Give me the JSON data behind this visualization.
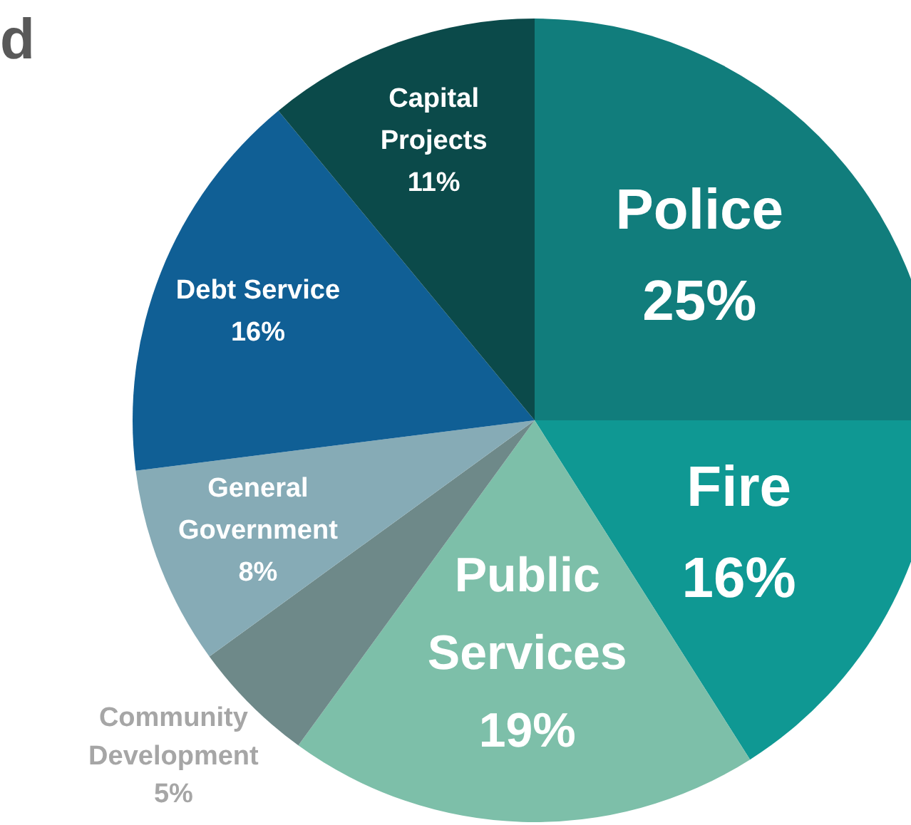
{
  "chart_data": {
    "type": "pie",
    "title": "d",
    "categories": [
      "Police",
      "Fire",
      "Public Services",
      "Community Development",
      "General Government",
      "Debt Service",
      "Capital Projects"
    ],
    "values": [
      25,
      16,
      19,
      5,
      8,
      16,
      11
    ],
    "colors": [
      "#117d7c",
      "#0f9893",
      "#7dbfa9",
      "#6e8989",
      "#86abb6",
      "#105f95",
      "#0b4a4a"
    ],
    "value_labels": [
      "25%",
      "16%",
      "19%",
      "5%",
      "8%",
      "16%",
      "11%"
    ]
  }
}
